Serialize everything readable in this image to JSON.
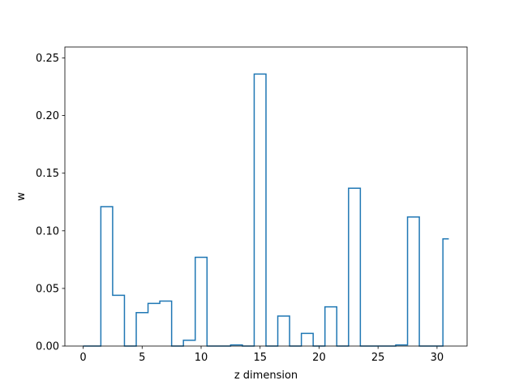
{
  "chart_data": {
    "type": "step",
    "title": "",
    "xlabel": "z dimension",
    "ylabel": "w",
    "xlim": [
      -1.55,
      32.55
    ],
    "ylim": [
      0,
      0.2595
    ],
    "xticks": [
      0,
      5,
      10,
      15,
      20,
      25,
      30
    ],
    "yticks": [
      0.0,
      0.05,
      0.1,
      0.15,
      0.2,
      0.25
    ],
    "xtick_labels": [
      "0",
      "5",
      "10",
      "15",
      "20",
      "25",
      "30"
    ],
    "ytick_labels": [
      "0.00",
      "0.05",
      "0.10",
      "0.15",
      "0.20",
      "0.25"
    ],
    "step_where": "mid",
    "grid": false,
    "line_color": "#1f77b4",
    "x": [
      0,
      1,
      2,
      3,
      4,
      5,
      6,
      7,
      8,
      9,
      10,
      11,
      12,
      13,
      14,
      15,
      16,
      17,
      18,
      19,
      20,
      21,
      22,
      23,
      24,
      25,
      26,
      27,
      28,
      29,
      30,
      31
    ],
    "values": [
      0.0,
      0.0,
      0.121,
      0.044,
      0.0,
      0.029,
      0.037,
      0.039,
      0.0,
      0.005,
      0.077,
      0.0,
      0.0,
      0.001,
      0.0,
      0.236,
      0.0,
      0.026,
      0.0,
      0.011,
      0.0,
      0.034,
      0.0,
      0.137,
      0.0,
      0.0,
      0.0,
      0.001,
      0.112,
      0.0,
      0.0,
      0.093
    ]
  }
}
